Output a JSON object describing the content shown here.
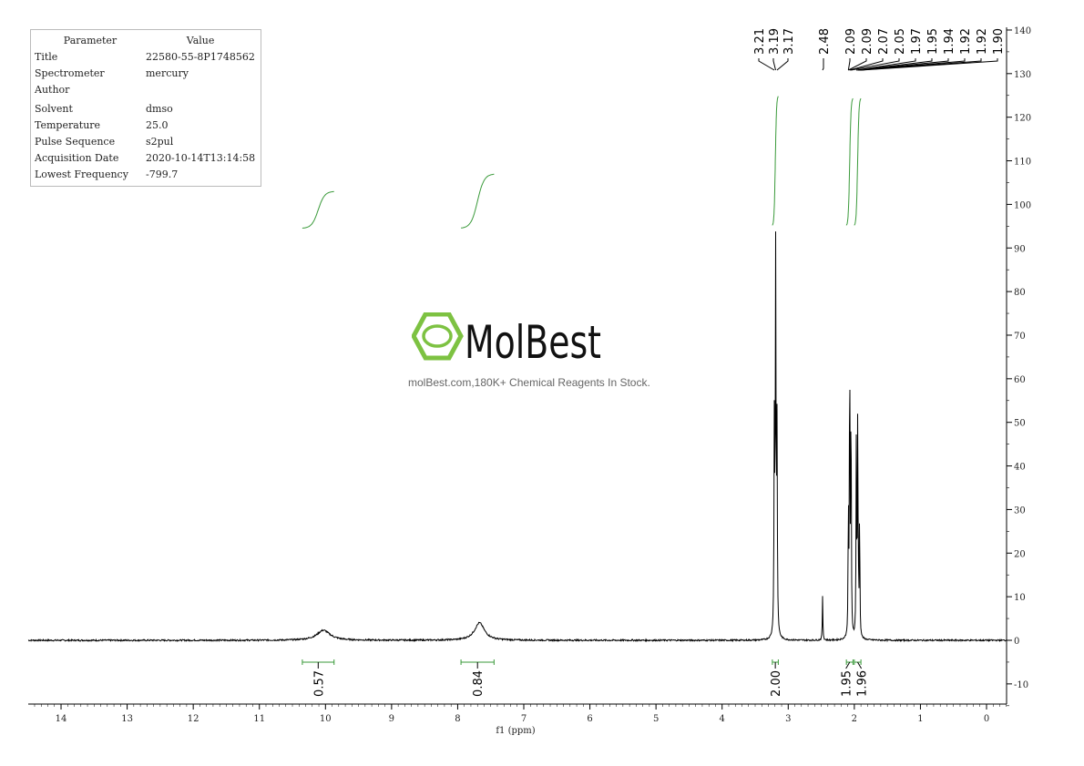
{
  "parameters": {
    "header": {
      "key": "Parameter",
      "value": "Value"
    },
    "rows": [
      {
        "key": "Title",
        "value": "22580-55-8P1748562"
      },
      {
        "key": "Spectrometer",
        "value": "mercury"
      },
      {
        "key": "Author",
        "value": ""
      },
      {
        "key": "Solvent",
        "value": "dmso"
      },
      {
        "key": "Temperature",
        "value": "25.0"
      },
      {
        "key": "Pulse Sequence",
        "value": "s2pul"
      },
      {
        "key": "Acquisition Date",
        "value": "2020-10-14T13:14:58"
      },
      {
        "key": "Lowest Frequency",
        "value": "-799.7"
      }
    ]
  },
  "watermark": {
    "logo_text": "MolBest",
    "tagline": "molBest.com,180K+ Chemical Reagents In Stock.",
    "color": "#7dc242"
  },
  "chart_data": {
    "type": "line",
    "xlabel": "f1 (ppm)",
    "xlim": [
      14.5,
      -0.3
    ],
    "ylim": [
      -15,
      142
    ],
    "x_reversed": true,
    "xticks": [
      14,
      13,
      12,
      11,
      10,
      9,
      8,
      7,
      6,
      5,
      4,
      3,
      2,
      1,
      0
    ],
    "yticks": [
      140,
      130,
      120,
      110,
      100,
      90,
      80,
      70,
      60,
      50,
      40,
      30,
      20,
      10,
      0,
      -10
    ],
    "y_axis_position": "right",
    "grid": false,
    "line_color": "#000000",
    "integral_color": "#3a9a3a",
    "peaks": [
      {
        "ppm": 10.03,
        "height": 2.3,
        "width": 0.12
      },
      {
        "ppm": 7.67,
        "height": 4.0,
        "width": 0.09
      },
      {
        "ppm": 3.21,
        "height": 48,
        "width": 0.006
      },
      {
        "ppm": 3.19,
        "height": 86,
        "width": 0.006
      },
      {
        "ppm": 3.17,
        "height": 47,
        "width": 0.006
      },
      {
        "ppm": 2.48,
        "height": 10,
        "width": 0.005
      },
      {
        "ppm": 2.09,
        "height": 30,
        "width": 0.005
      },
      {
        "ppm": 2.07,
        "height": 70,
        "width": 0.005
      },
      {
        "ppm": 2.05,
        "height": 58,
        "width": 0.005
      },
      {
        "ppm": 1.97,
        "height": 44,
        "width": 0.005
      },
      {
        "ppm": 1.95,
        "height": 46,
        "width": 0.005
      },
      {
        "ppm": 1.94,
        "height": 16,
        "width": 0.004
      },
      {
        "ppm": 1.92,
        "height": 29,
        "width": 0.005
      }
    ],
    "peak_labels": [
      "3.21",
      "3.19",
      "3.17",
      "2.48",
      "2.09",
      "2.09",
      "2.07",
      "2.05",
      "1.97",
      "1.95",
      "1.94",
      "1.92",
      "1.92",
      "1.90"
    ],
    "peak_label_ppm": [
      3.21,
      3.19,
      3.17,
      2.48,
      2.09,
      2.09,
      2.07,
      2.05,
      1.97,
      1.95,
      1.94,
      1.92,
      1.92,
      1.9
    ],
    "integrals": [
      {
        "label": "0.57",
        "from": 10.35,
        "to": 9.87,
        "start": 94.5,
        "end": 103
      },
      {
        "label": "0.84",
        "from": 7.95,
        "to": 7.45,
        "start": 94.5,
        "end": 107
      },
      {
        "label": "2.00",
        "from": 3.24,
        "to": 3.15,
        "start": 95,
        "end": 125
      },
      {
        "label": "1.95",
        "from": 2.12,
        "to": 2.02,
        "start": 95,
        "end": 124.5
      },
      {
        "label": "1.96",
        "from": 2.0,
        "to": 1.9,
        "start": 95,
        "end": 124.5
      }
    ]
  }
}
